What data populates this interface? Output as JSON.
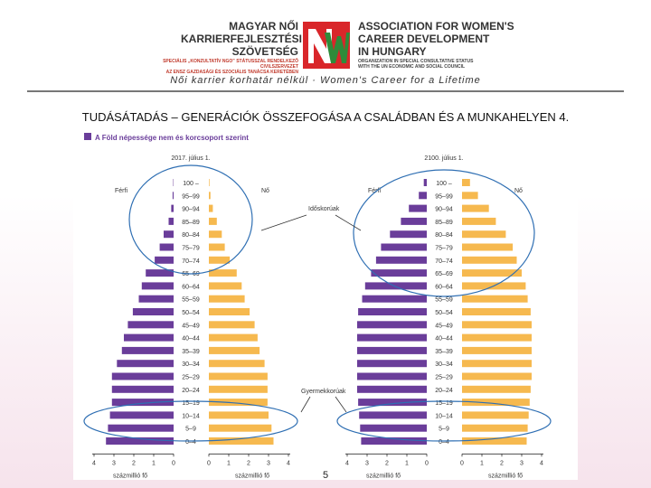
{
  "header": {
    "org_hu_lines": [
      "MAGYAR NŐI",
      "KARRIERFEJLESZTÉSI",
      "SZÖVETSÉG"
    ],
    "org_hu_sub": [
      "SPECIÁLIS „KONZULTATÍV NGO” STÁTUSSZAL RENDELKEZŐ CIVILSZERVEZET",
      "AZ ENSZ GAZDASÁGI ÉS SZOCIÁLIS TANÁCSA KERETÉBEN"
    ],
    "org_en_lines": [
      "ASSOCIATION FOR WOMEN'S",
      "CAREER DEVELOPMENT",
      "IN HUNGARY"
    ],
    "org_en_sub": [
      "ORGANIZATION IN SPECIAL CONSULTATIVE STATUS",
      "WITH THE UN ECONOMIC AND SOCIAL COUNCIL"
    ],
    "tagline": "Női karrier korhatár nélkül · Women's Career for a Lifetime",
    "logo_color": "#d9262a"
  },
  "slide_title": "TUDÁSÁTADÁS – GENERÁCIÓK ÖSSZEFOGÁSA A CSALÁDBAN ÉS A MUNKAHELYEN 4.",
  "page_number": "5",
  "chart_data": {
    "type": "bar",
    "title": "A Föld népessége nem és korcsoport szerint",
    "age_groups": [
      "100 –",
      "95–99",
      "90–94",
      "85–89",
      "80–84",
      "75–79",
      "70–74",
      "65–69",
      "60–64",
      "55–59",
      "50–54",
      "45–49",
      "40–44",
      "35–39",
      "30–34",
      "25–29",
      "20–24",
      "15–19",
      "10–14",
      "5–9",
      "0–4"
    ],
    "side_labels": {
      "male": "Férfi",
      "female": "Nő"
    },
    "xlabel": "százmillió fő",
    "ticks_left": [
      "4",
      "3",
      "2",
      "1",
      "0"
    ],
    "ticks_right": [
      "0",
      "1",
      "2",
      "3",
      "4"
    ],
    "colors": {
      "male": "#6a3d9a",
      "female": "#f6b94f"
    },
    "annotations": {
      "elderly": "Időskorúak",
      "children": "Gyermekkorúak"
    },
    "pyramids": [
      {
        "date": "2017. július 1.",
        "male": [
          0.02,
          0.05,
          0.12,
          0.25,
          0.5,
          0.7,
          0.95,
          1.4,
          1.6,
          1.75,
          2.05,
          2.3,
          2.5,
          2.6,
          2.85,
          3.1,
          3.1,
          3.1,
          3.2,
          3.3,
          3.4
        ],
        "female": [
          0.03,
          0.08,
          0.2,
          0.4,
          0.65,
          0.8,
          1.05,
          1.4,
          1.65,
          1.8,
          2.05,
          2.3,
          2.45,
          2.55,
          2.8,
          2.95,
          2.95,
          2.95,
          3.0,
          3.15,
          3.25
        ]
      },
      {
        "date": "2100. július 1.",
        "male": [
          0.15,
          0.4,
          0.9,
          1.3,
          1.85,
          2.3,
          2.55,
          2.8,
          3.1,
          3.25,
          3.45,
          3.5,
          3.5,
          3.5,
          3.5,
          3.5,
          3.5,
          3.45,
          3.4,
          3.35,
          3.3
        ],
        "female": [
          0.4,
          0.8,
          1.35,
          1.7,
          2.2,
          2.55,
          2.75,
          3.0,
          3.2,
          3.3,
          3.45,
          3.5,
          3.5,
          3.5,
          3.5,
          3.5,
          3.45,
          3.4,
          3.35,
          3.3,
          3.25
        ]
      }
    ]
  }
}
